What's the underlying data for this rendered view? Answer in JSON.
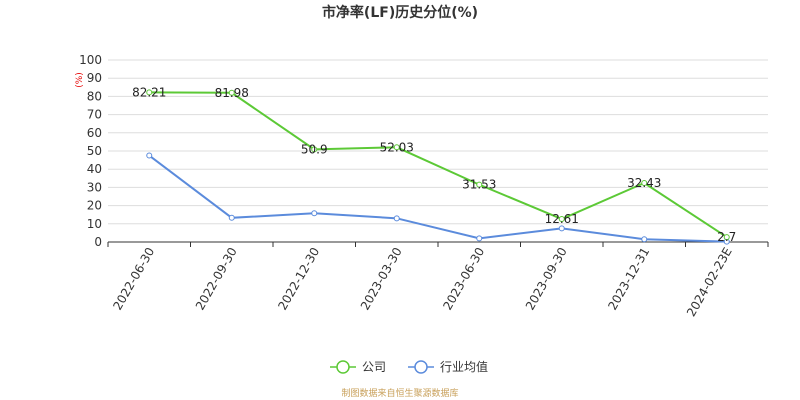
{
  "chart_data": {
    "type": "line",
    "title": "市净率(LF)历史分位(%)",
    "y_unit": "(%)",
    "ylim": [
      0,
      100
    ],
    "y_ticks": [
      0,
      10,
      20,
      30,
      40,
      50,
      60,
      70,
      80,
      90,
      100
    ],
    "categories": [
      "2022-06-30",
      "2022-09-30",
      "2022-12-30",
      "2023-03-30",
      "2023-06-30",
      "2023-09-30",
      "2023-12-31",
      "2024-02-23E"
    ],
    "series": [
      {
        "name": "公司",
        "color": "#5cc936",
        "values": [
          82.21,
          81.98,
          50.9,
          52.03,
          31.53,
          12.61,
          32.43,
          2.7
        ],
        "labels": [
          "82.21",
          "81.98",
          "50.9",
          "52.03",
          "31.53",
          "12.61",
          "32.43",
          "2.7"
        ]
      },
      {
        "name": "行业均值",
        "color": "#5b8bdc",
        "values": [
          47.5,
          13.3,
          15.8,
          13.0,
          2.0,
          7.5,
          1.5,
          0.2
        ]
      }
    ],
    "grid": true,
    "legend": "bottom-center"
  },
  "source_text": "制图数据来自恒生聚源数据库"
}
